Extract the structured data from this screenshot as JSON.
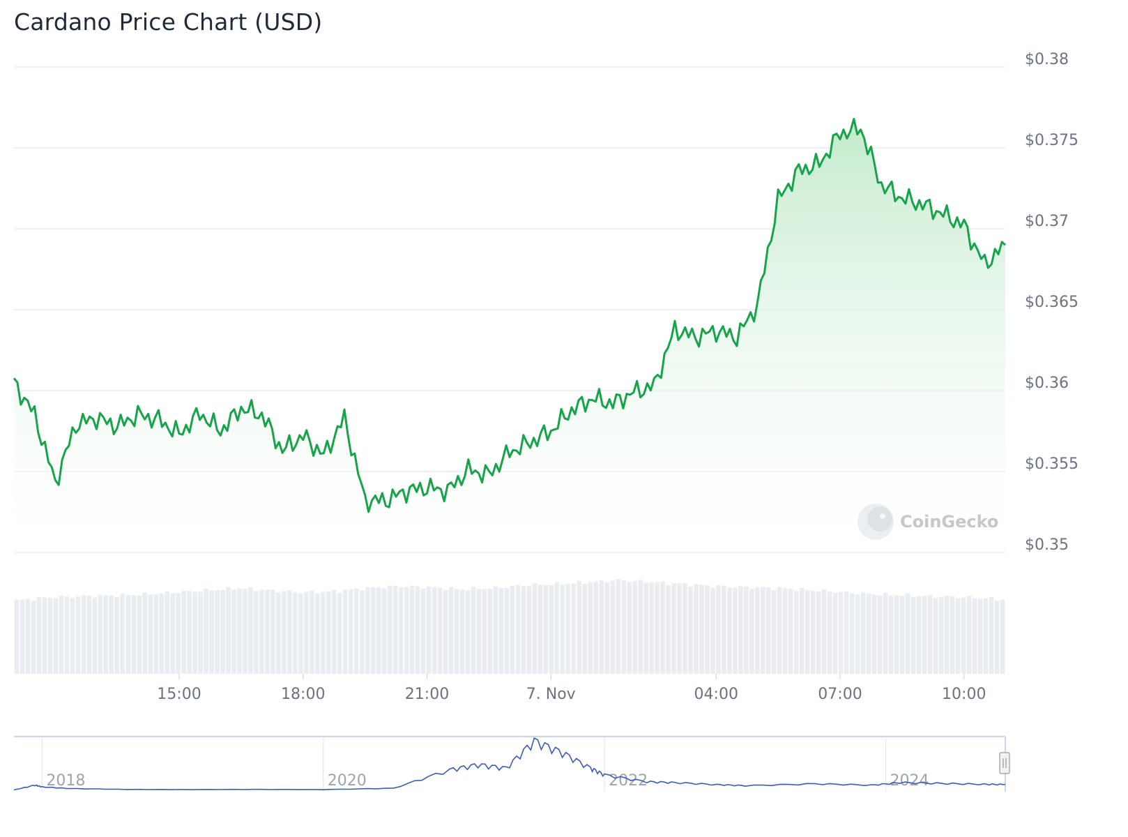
{
  "title": "Cardano Price Chart (USD)",
  "watermark": "CoinGecko",
  "colors": {
    "line": "#16a34a",
    "fill_top": "#bfe9c9",
    "volume": "#e9edf1",
    "grid": "#e5e7eb",
    "navigator_line": "#3b5bb5"
  },
  "icons": [
    "coingecko-logo-icon",
    "navigator-handle-icon"
  ],
  "chart_data": [
    {
      "type": "area",
      "title": "Cardano Price Chart (USD)",
      "xlabel": "",
      "ylabel": "",
      "ylim": [
        0.35,
        0.38
      ],
      "yticks": [
        "$0.38",
        "$0.375",
        "$0.37",
        "$0.365",
        "$0.36",
        "$0.355",
        "$0.35"
      ],
      "x_ticks": [
        "15:00",
        "18:00",
        "21:00",
        "7. Nov",
        "04:00",
        "07:00",
        "10:00"
      ],
      "grid": true,
      "x_hours": [
        0.0,
        0.5,
        1.0,
        1.5,
        2.0,
        2.5,
        3.0,
        3.5,
        4.0,
        4.5,
        5.0,
        5.5,
        6.0,
        6.5,
        7.0,
        7.5,
        8.0,
        8.5,
        9.0,
        9.5,
        10.0,
        10.5,
        11.0,
        11.5,
        12.0,
        12.5,
        13.0,
        13.5,
        14.0,
        14.5,
        15.0,
        15.5,
        16.0,
        16.5,
        17.0,
        17.5,
        18.0,
        18.5,
        19.0,
        19.5,
        20.0,
        20.5,
        21.0,
        21.5,
        22.0,
        22.5,
        23.0,
        23.5,
        24.0
      ],
      "series": [
        {
          "values": [
            0.3605,
            0.3585,
            0.3543,
            0.3579,
            0.3583,
            0.3578,
            0.3585,
            0.3582,
            0.3573,
            0.3586,
            0.3575,
            0.3589,
            0.3585,
            0.3563,
            0.3572,
            0.356,
            0.3583,
            0.3532,
            0.3532,
            0.3538,
            0.354,
            0.3538,
            0.3551,
            0.3548,
            0.3562,
            0.3568,
            0.3575,
            0.3588,
            0.3595,
            0.3592,
            0.3599,
            0.3603,
            0.3638,
            0.3633,
            0.3637,
            0.3633,
            0.3653,
            0.3718,
            0.3736,
            0.374,
            0.3759,
            0.3762,
            0.3727,
            0.3719,
            0.3715,
            0.3709,
            0.3702,
            0.3678,
            0.369
          ]
        }
      ]
    },
    {
      "type": "bar",
      "title": "",
      "xlabel": "",
      "ylabel": "",
      "values": [
        0.72,
        0.75,
        0.76,
        0.77,
        0.78,
        0.8,
        0.82,
        0.84,
        0.82,
        0.8,
        0.81,
        0.84,
        0.86,
        0.85,
        0.83,
        0.84,
        0.87,
        0.88,
        0.9,
        0.92,
        0.9,
        0.88,
        0.86,
        0.85,
        0.84,
        0.82,
        0.8,
        0.78,
        0.77,
        0.76,
        0.75,
        0.73
      ]
    },
    {
      "type": "line",
      "title": "",
      "xlabel": "",
      "ylabel": "",
      "x_ticks": [
        "2018",
        "2020",
        "2022",
        "2024"
      ],
      "x": [
        2017.8,
        2017.95,
        2018.0,
        2018.2,
        2018.6,
        2019.0,
        2019.5,
        2020.0,
        2020.5,
        2020.9,
        2021.1,
        2021.3,
        2021.5,
        2021.7,
        2021.9,
        2022.0,
        2022.3,
        2022.5,
        2022.8,
        2023.0,
        2023.5,
        2023.9,
        2024.1,
        2024.4,
        2024.7,
        2024.85
      ],
      "values": [
        0.02,
        0.3,
        0.2,
        0.1,
        0.05,
        0.04,
        0.05,
        0.04,
        0.12,
        1.2,
        1.5,
        1.3,
        2.9,
        2.2,
        1.3,
        0.9,
        0.5,
        0.45,
        0.33,
        0.27,
        0.38,
        0.3,
        0.45,
        0.4,
        0.35,
        0.34
      ]
    }
  ]
}
